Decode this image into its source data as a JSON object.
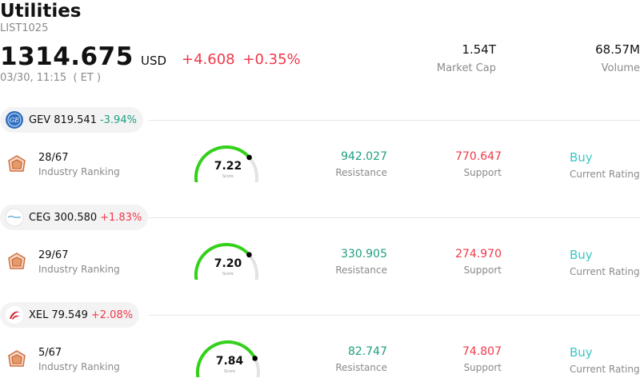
{
  "header": {
    "title": "Utilities",
    "code": "LIST1025",
    "price": "1314.675",
    "currency": "USD",
    "change": "+4.608",
    "change_pct": "+0.35%",
    "timestamp": "03/30, 11:15  ( ET )",
    "market_cap_value": "1.54T",
    "market_cap_label": "Market Cap",
    "volume_value": "68.57M",
    "volume_label": "Volume"
  },
  "colors": {
    "up": "#f0384a",
    "down": "#1f9e80",
    "rating": "#3cc6c6",
    "gauge": "#33d11a"
  },
  "stocks": [
    {
      "ticker": "GEV",
      "price": "819.541",
      "change_pct": "-3.94%",
      "direction": "down",
      "logo": "ge-logo-icon",
      "rank": "28/67",
      "rank_label": "Industry Ranking",
      "score": "7.22",
      "score_label": "Score",
      "score_value": 7.22,
      "resistance": "942.027",
      "resistance_label": "Resistance",
      "support": "770.647",
      "support_label": "Support",
      "rating": "Buy",
      "rating_label": "Current Rating"
    },
    {
      "ticker": "CEG",
      "price": "300.580",
      "change_pct": "+1.83%",
      "direction": "up",
      "logo": "constellation-logo-icon",
      "rank": "29/67",
      "rank_label": "Industry Ranking",
      "score": "7.20",
      "score_label": "Score",
      "score_value": 7.2,
      "resistance": "330.905",
      "resistance_label": "Resistance",
      "support": "274.970",
      "support_label": "Support",
      "rating": "Buy",
      "rating_label": "Current Rating"
    },
    {
      "ticker": "XEL",
      "price": "79.549",
      "change_pct": "+2.08%",
      "direction": "up",
      "logo": "xcel-logo-icon",
      "rank": "5/67",
      "rank_label": "Industry Ranking",
      "score": "7.84",
      "score_label": "Score",
      "score_value": 7.84,
      "resistance": "82.747",
      "resistance_label": "Resistance",
      "support": "74.807",
      "support_label": "Support",
      "rating": "Buy",
      "rating_label": "Current Rating"
    }
  ]
}
